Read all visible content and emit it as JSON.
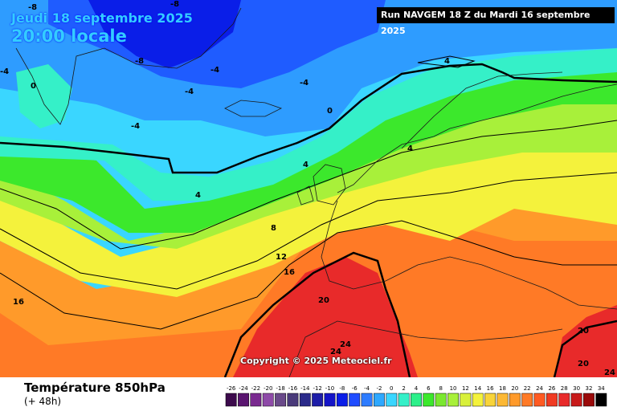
{
  "header": {
    "date": "Jeudi 18 septembre 2025",
    "time": "20:00 locale",
    "run": "Run NAVGEM 18 Z du Mardi 16 septembre 2025"
  },
  "copyright": "Copyright © 2025 Meteociel.fr",
  "footer": {
    "title": "Température 850hPa",
    "subtitle": "(+ 48h)"
  },
  "colors": {
    "deep_blue": "#0a1ee8",
    "blue": "#1f5cff",
    "light_blue": "#2e9cff",
    "cyan": "#3ad6ff",
    "aqua": "#35f0c8",
    "green": "#3ce82c",
    "lime": "#a8f03a",
    "yellow": "#f4f23c",
    "orange": "#ff9a2a",
    "red_orange": "#ff5a22",
    "red": "#e82a2a"
  },
  "map_labels": {
    "minus8": "-8",
    "minus4": "-4",
    "zero": "0",
    "four": "4",
    "eight": "8",
    "twelve": "12",
    "sixteen": "16",
    "twenty": "20",
    "twentyfour": "24"
  },
  "scale": {
    "labels": [
      "-26",
      "-24",
      "-22",
      "-20",
      "-18",
      "-16",
      "-14",
      "-12",
      "-10",
      "-8",
      "-6",
      "-4",
      "-2",
      "0",
      "2",
      "4",
      "6",
      "8",
      "10",
      "12",
      "14",
      "16",
      "18",
      "20",
      "22",
      "24",
      "26",
      "28",
      "30",
      "32",
      "34"
    ],
    "colors": [
      "#3c0a4c",
      "#5a1470",
      "#7a2a90",
      "#8e4aa8",
      "#6a4a8a",
      "#4a3a7a",
      "#2a2a8a",
      "#1e1ea8",
      "#1414c8",
      "#0a1ee8",
      "#1f4cff",
      "#2e7cff",
      "#2ea8ff",
      "#3ad6ff",
      "#35f0c8",
      "#2cf08a",
      "#3ce82c",
      "#7ae830",
      "#a8f03a",
      "#d8f03a",
      "#f4f23c",
      "#f8d43a",
      "#fcb834",
      "#ff9a2a",
      "#ff7a26",
      "#ff5a22",
      "#f03a22",
      "#e82a2a",
      "#c81a1a",
      "#9a0a0a",
      "#000000"
    ]
  }
}
